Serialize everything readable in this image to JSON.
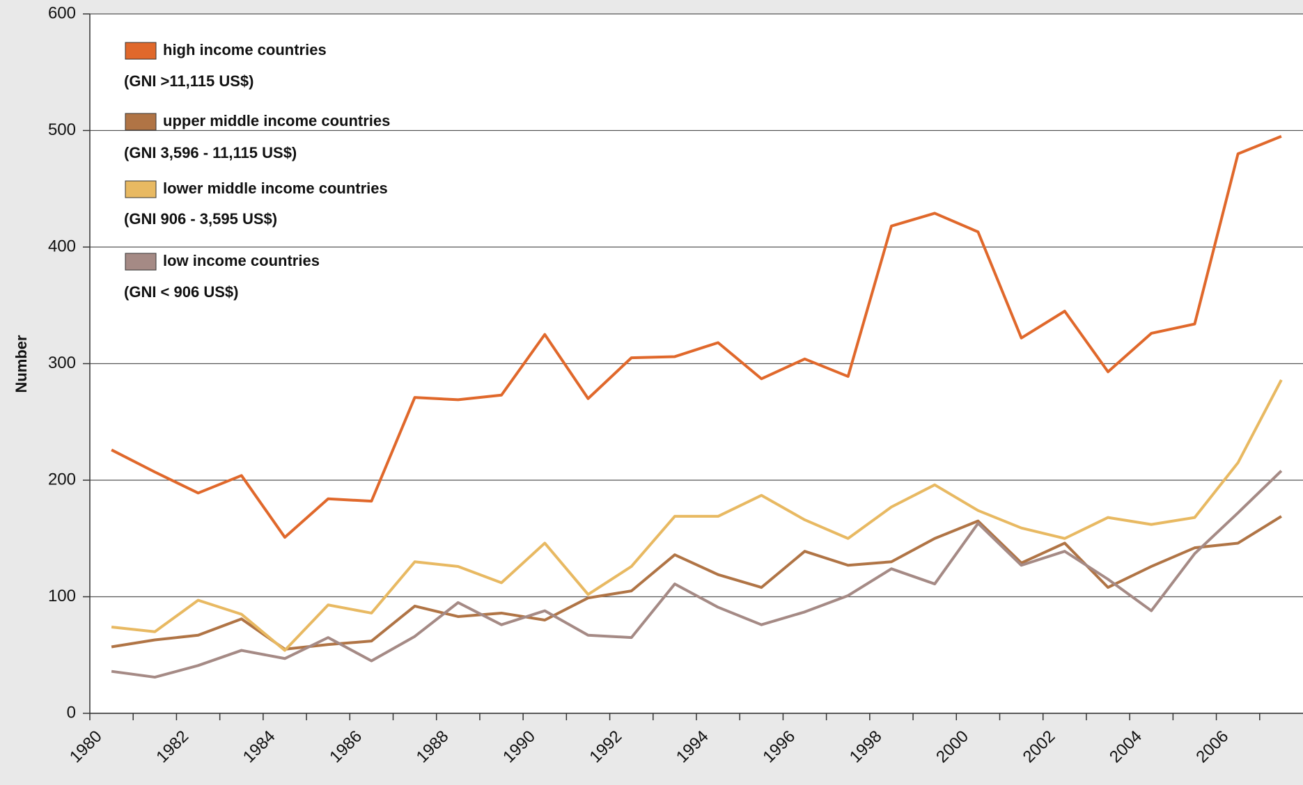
{
  "chart_data": {
    "type": "line",
    "y_label": "Number",
    "categories": [
      1980,
      null,
      1982,
      null,
      1984,
      null,
      1986,
      null,
      1988,
      null,
      1990,
      null,
      1992,
      null,
      1994,
      null,
      1996,
      null,
      1998,
      null,
      2000,
      null,
      2002,
      null,
      2004,
      null,
      2006,
      null
    ],
    "series": [
      {
        "name": "high income countries",
        "legend_note": "(GNI >11,115 US$)",
        "color": "#e0682b",
        "values": [
          226,
          207,
          189,
          204,
          151,
          184,
          182,
          271,
          269,
          273,
          325,
          270,
          305,
          306,
          318,
          287,
          304,
          289,
          418,
          429,
          413,
          322,
          345,
          293,
          326,
          334,
          480,
          495
        ]
      },
      {
        "name": "upper middle income countries",
        "legend_note": "(GNI 3,596 - 11,115 US$)",
        "color": "#b07445",
        "values": [
          57,
          63,
          67,
          81,
          55,
          59,
          62,
          92,
          83,
          86,
          80,
          99,
          105,
          136,
          119,
          108,
          139,
          127,
          130,
          150,
          165,
          129,
          146,
          108,
          126,
          142,
          146,
          169
        ]
      },
      {
        "name": "lower middle income countries",
        "legend_note": "(GNI 906 - 3,595 US$)",
        "color": "#e8b962",
        "values": [
          74,
          70,
          97,
          85,
          54,
          93,
          86,
          130,
          126,
          112,
          146,
          102,
          126,
          169,
          169,
          187,
          166,
          150,
          177,
          196,
          174,
          159,
          150,
          168,
          162,
          168,
          215,
          286
        ]
      },
      {
        "name": "low  income countries",
        "legend_note": "(GNI < 906 US$)",
        "color": "#a58a85",
        "values": [
          36,
          31,
          41,
          54,
          47,
          65,
          45,
          66,
          95,
          76,
          88,
          67,
          65,
          111,
          91,
          76,
          87,
          101,
          124,
          111,
          163,
          127,
          139,
          115,
          88,
          137,
          172,
          208
        ]
      }
    ],
    "ylim": [
      0,
      600
    ],
    "yticks": [
      0,
      100,
      200,
      300,
      400,
      500,
      600
    ],
    "grid": true
  }
}
